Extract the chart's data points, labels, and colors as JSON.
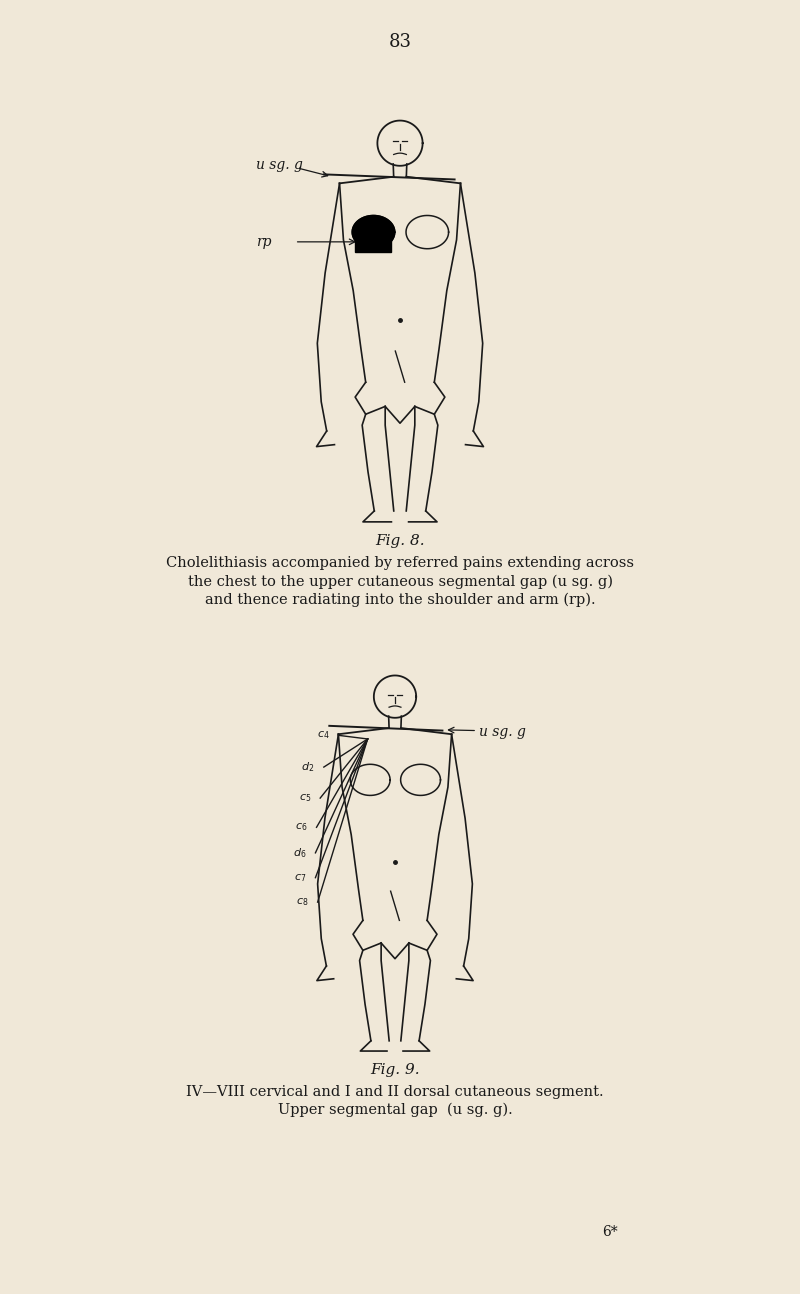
{
  "bg_color": "#f0e8d8",
  "page_number": "83",
  "fig8_caption": "Fig. 8.",
  "fig8_text_line1": "Cholelithiasis accompanied by referred pains extending across",
  "fig8_text_line2": "the chest to the upper cutaneous segmental gap (u sg. g)",
  "fig8_text_line3": "and thence radiating into the shoulder and arm (rp).",
  "fig9_caption": "Fig. 9.",
  "fig9_text_line1": "IV—VIII cervical and I and II dorsal cutaneous segment.",
  "fig9_text_line2": "Upper segmental gap  (u sg. g).",
  "footer": "6*",
  "ink_color": "#1a1a1a",
  "label_usg_g_fig8": "u sg. g",
  "label_rp_fig8": "rp",
  "label_usg_g_fig9": "u sg. g"
}
